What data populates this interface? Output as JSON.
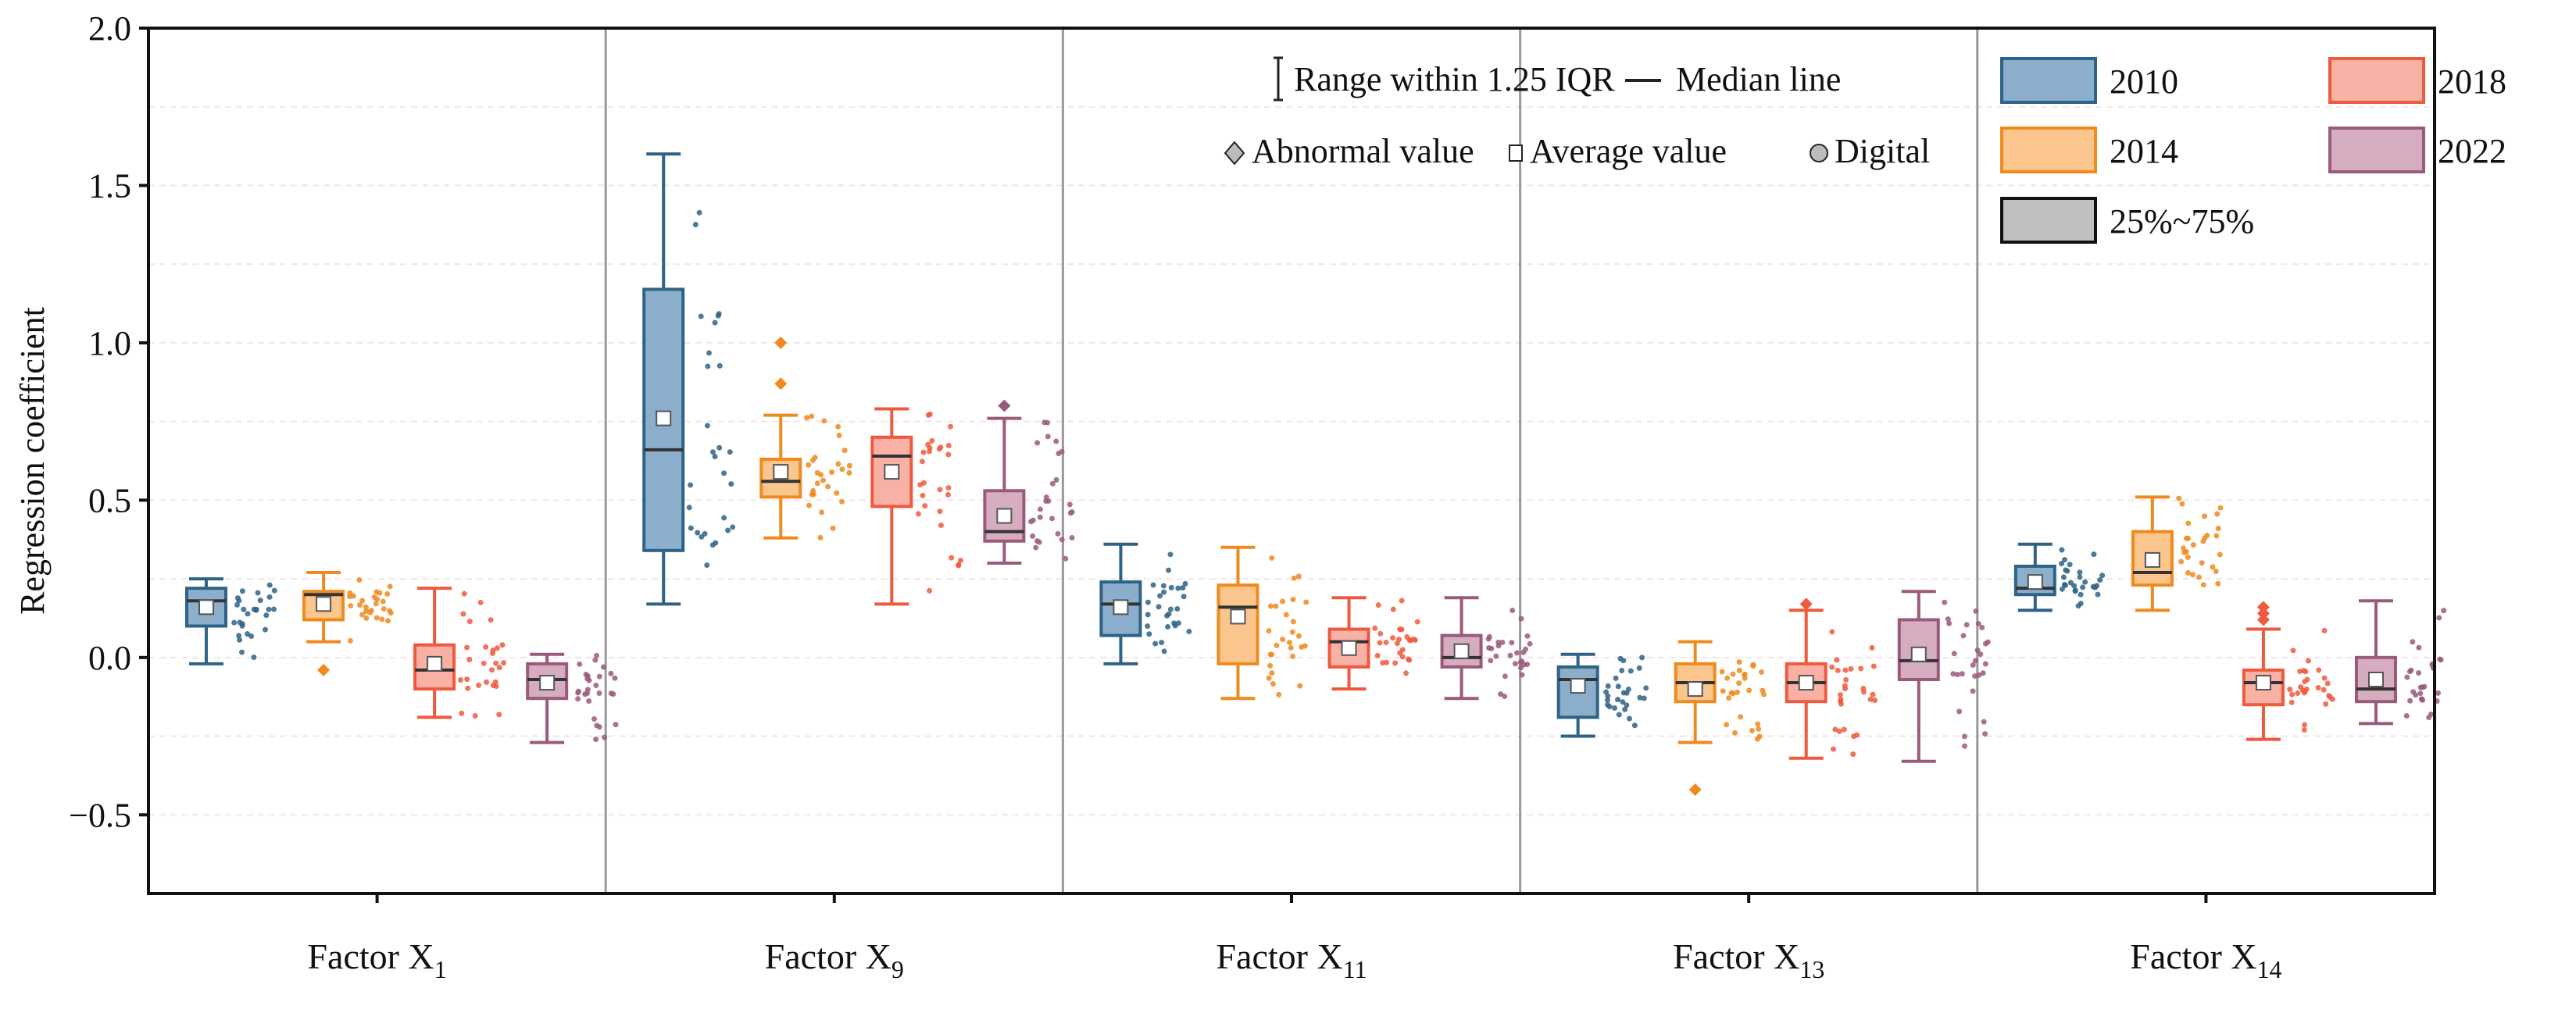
{
  "chart_data": {
    "type": "box",
    "title": "",
    "xlabel": "",
    "ylabel": "Regression coefficient",
    "ylim": [
      -0.75,
      2.0
    ],
    "yticks": [
      "2.0",
      "1.5",
      "1.0",
      "0.5",
      "0.0",
      "−0.5"
    ],
    "ytick_values": [
      2.0,
      1.5,
      1.0,
      0.5,
      0.0,
      -0.5
    ],
    "grid": true,
    "categories": [
      {
        "main": "Factor X",
        "sub": "1"
      },
      {
        "main": "Factor X",
        "sub": "9"
      },
      {
        "main": "Factor X",
        "sub": "11"
      },
      {
        "main": "Factor X",
        "sub": "13"
      },
      {
        "main": "Factor X",
        "sub": "14"
      }
    ],
    "series": [
      {
        "name": "2010",
        "fill": "#8aaecb",
        "stroke": "#2f6386",
        "boxes": [
          {
            "low": -0.02,
            "q1": 0.1,
            "median": 0.18,
            "q3": 0.22,
            "high": 0.25,
            "mean": 0.16,
            "outliers": []
          },
          {
            "low": 0.17,
            "q1": 0.34,
            "median": 0.66,
            "q3": 1.17,
            "high": 1.6,
            "mean": 0.76,
            "outliers": []
          },
          {
            "low": -0.02,
            "q1": 0.07,
            "median": 0.17,
            "q3": 0.24,
            "high": 0.36,
            "mean": 0.16,
            "outliers": []
          },
          {
            "low": -0.25,
            "q1": -0.19,
            "median": -0.07,
            "q3": -0.03,
            "high": 0.01,
            "mean": -0.09,
            "outliers": []
          },
          {
            "low": 0.15,
            "q1": 0.2,
            "median": 0.22,
            "q3": 0.29,
            "high": 0.36,
            "mean": 0.24,
            "outliers": []
          }
        ]
      },
      {
        "name": "2014",
        "fill": "#fbc58e",
        "stroke": "#ef8a1f",
        "boxes": [
          {
            "low": 0.05,
            "q1": 0.12,
            "median": 0.2,
            "q3": 0.21,
            "high": 0.27,
            "mean": 0.17,
            "outliers": [
              -0.04
            ]
          },
          {
            "low": 0.38,
            "q1": 0.51,
            "median": 0.56,
            "q3": 0.63,
            "high": 0.77,
            "mean": 0.59,
            "outliers": [
              0.87,
              1.0
            ]
          },
          {
            "low": -0.13,
            "q1": -0.02,
            "median": 0.16,
            "q3": 0.23,
            "high": 0.35,
            "mean": 0.13,
            "outliers": []
          },
          {
            "low": -0.27,
            "q1": -0.14,
            "median": -0.08,
            "q3": -0.02,
            "high": 0.05,
            "mean": -0.1,
            "outliers": [
              -0.42
            ]
          },
          {
            "low": 0.15,
            "q1": 0.23,
            "median": 0.27,
            "q3": 0.4,
            "high": 0.51,
            "mean": 0.31,
            "outliers": []
          }
        ]
      },
      {
        "name": "2018",
        "fill": "#f9b1a5",
        "stroke": "#ee5a3d",
        "boxes": [
          {
            "low": -0.19,
            "q1": -0.1,
            "median": -0.04,
            "q3": 0.04,
            "high": 0.22,
            "mean": -0.02,
            "outliers": []
          },
          {
            "low": 0.17,
            "q1": 0.48,
            "median": 0.64,
            "q3": 0.7,
            "high": 0.79,
            "mean": 0.59,
            "outliers": []
          },
          {
            "low": -0.1,
            "q1": -0.03,
            "median": 0.05,
            "q3": 0.09,
            "high": 0.19,
            "mean": 0.03,
            "outliers": []
          },
          {
            "low": -0.32,
            "q1": -0.14,
            "median": -0.08,
            "q3": -0.02,
            "high": 0.15,
            "mean": -0.08,
            "outliers": [
              0.17
            ]
          },
          {
            "low": -0.26,
            "q1": -0.15,
            "median": -0.08,
            "q3": -0.04,
            "high": 0.09,
            "mean": -0.08,
            "outliers": [
              0.12,
              0.14,
              0.16
            ]
          }
        ]
      },
      {
        "name": "2022",
        "fill": "#d6adc0",
        "stroke": "#9a5a7b",
        "boxes": [
          {
            "low": -0.27,
            "q1": -0.13,
            "median": -0.07,
            "q3": -0.02,
            "high": 0.01,
            "mean": -0.08,
            "outliers": []
          },
          {
            "low": 0.3,
            "q1": 0.37,
            "median": 0.4,
            "q3": 0.53,
            "high": 0.76,
            "mean": 0.45,
            "outliers": [
              0.8
            ]
          },
          {
            "low": -0.13,
            "q1": -0.03,
            "median": 0.0,
            "q3": 0.07,
            "high": 0.19,
            "mean": 0.02,
            "outliers": []
          },
          {
            "low": -0.33,
            "q1": -0.07,
            "median": -0.01,
            "q3": 0.12,
            "high": 0.21,
            "mean": 0.01,
            "outliers": []
          },
          {
            "low": -0.21,
            "q1": -0.14,
            "median": -0.1,
            "q3": 0.0,
            "high": 0.18,
            "mean": -0.07,
            "outliers": []
          }
        ]
      }
    ],
    "legend": {
      "placement": "top-right",
      "range": "Range within 1.25 IQR",
      "median": "Median line",
      "abnormal": "Abnormal value",
      "average": "Average value",
      "digital": "Digital",
      "iqr": "25%~75%"
    }
  }
}
